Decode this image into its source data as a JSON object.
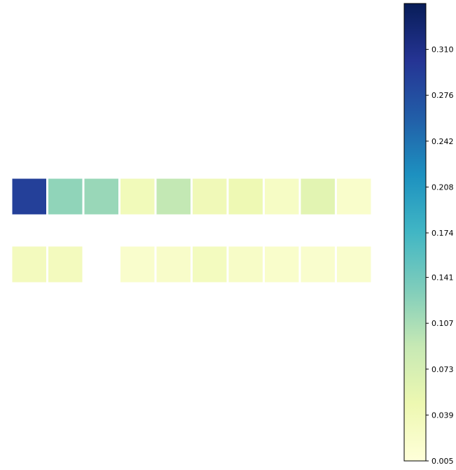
{
  "chart_data": {
    "type": "heatmap",
    "title": "",
    "xlabel": "",
    "ylabel": "",
    "rows": 2,
    "columns": 10,
    "values": [
      [
        0.29,
        0.122,
        0.117,
        0.038,
        0.092,
        0.04,
        0.044,
        0.026,
        0.06,
        0.02
      ],
      [
        0.034,
        0.034,
        null,
        0.019,
        0.022,
        0.032,
        0.024,
        0.02,
        0.018,
        0.019
      ]
    ],
    "colormap": "YlGnBu",
    "colorbar": {
      "min": 0.005,
      "max": 0.344,
      "ticks": [
        "0.005",
        "0.039",
        "0.073",
        "0.107",
        "0.141",
        "0.174",
        "0.208",
        "0.242",
        "0.276",
        "0.310"
      ]
    },
    "grid": false,
    "cell_gap_color": "#ffffff"
  }
}
